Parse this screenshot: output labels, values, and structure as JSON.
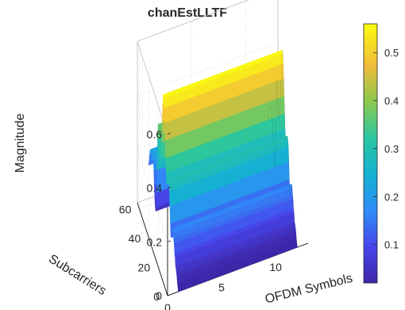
{
  "chart_data": {
    "type": "surface3d",
    "title": "chanEstLLTF",
    "xlabel": "OFDM Symbols",
    "ylabel": "Subcarriers",
    "zlabel": "Magnitude",
    "xlim": [
      0,
      13
    ],
    "ylim": [
      0,
      64
    ],
    "zlim": [
      0,
      0.6
    ],
    "xticks": [
      "0",
      "5",
      "10"
    ],
    "yticks": [
      "0",
      "20",
      "40",
      "60"
    ],
    "zticks": [
      "0",
      "0.2",
      "0.4",
      "0.6"
    ],
    "grid": true,
    "colormap": "parula",
    "colorbar": {
      "ticks": [
        "0.1",
        "0.2",
        "0.3",
        "0.4",
        "0.5"
      ],
      "range": [
        0.02,
        0.56
      ]
    },
    "subcarriers": [
      0,
      2,
      3,
      4,
      5,
      6,
      7,
      8,
      9,
      10,
      11,
      12,
      13,
      14,
      15,
      16,
      17,
      18,
      19,
      20,
      21,
      22,
      23,
      24,
      25,
      26,
      27,
      28,
      29,
      30,
      31,
      32,
      33,
      34,
      35,
      36,
      37,
      38,
      39,
      40,
      41,
      42,
      43,
      44,
      45,
      46,
      47,
      48,
      49,
      50,
      51,
      52,
      53,
      54,
      55,
      56,
      57,
      58,
      59,
      60,
      61,
      62,
      63
    ],
    "magnitude_by_subcarrier": [
      0,
      0.02,
      0.04,
      0.05,
      0.06,
      0.06,
      0.09,
      0.1,
      0.13,
      0.14,
      0.16,
      0.17,
      0.16,
      0.15,
      0.12,
      0.12,
      0.16,
      0.22,
      0.27,
      0.29,
      0.3,
      0.29,
      0.28,
      0.27,
      0.27,
      0.3,
      0.35,
      0.41,
      0.47,
      0.52,
      0.55,
      0.56,
      0.52,
      0.45,
      0.4,
      0.36,
      0.3,
      0.28,
      0.27,
      0.26,
      0.3,
      0.34,
      0.39,
      0.33,
      0.21,
      0.12,
      0.06,
      0.04,
      0.05,
      0.08,
      0.12,
      0.17,
      0.2,
      0.21,
      0.22,
      0.22,
      0.21,
      0.21,
      0.21,
      0.2,
      0.18,
      0.15,
      0.13
    ],
    "ofdm_symbols": [
      1,
      2,
      3,
      4,
      5,
      6,
      7,
      8,
      9,
      10,
      11,
      12
    ]
  }
}
